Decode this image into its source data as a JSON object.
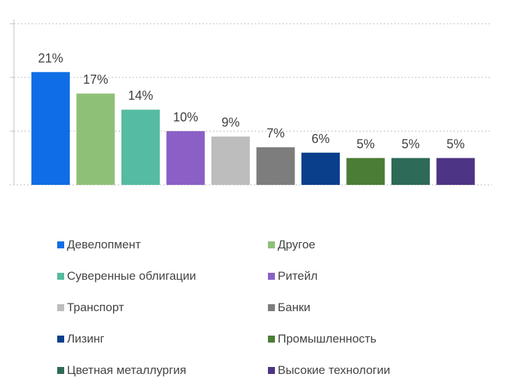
{
  "chart_data": {
    "type": "bar",
    "categories": [
      "Девелопмент",
      "Другое",
      "Суверенные облигации",
      "Ритейл",
      "Транспорт",
      "Банки",
      "Лизинг",
      "Промышленность",
      "Цветная металлургия",
      "Высокие технологии"
    ],
    "values": [
      21,
      17,
      14,
      10,
      9,
      7,
      6,
      5,
      5,
      5
    ],
    "data_labels": [
      "21%",
      "17%",
      "14%",
      "10%",
      "9%",
      "7%",
      "6%",
      "5%",
      "5%",
      "5%"
    ],
    "colors": [
      "#0f6ee6",
      "#8fc078",
      "#55bba1",
      "#8a60c6",
      "#bdbdbd",
      "#7d7d7d",
      "#0a3f8c",
      "#4c7d36",
      "#2e6a58",
      "#4e3484"
    ],
    "ylim": [
      0,
      30
    ],
    "grid": true,
    "legend_position": "bottom"
  }
}
